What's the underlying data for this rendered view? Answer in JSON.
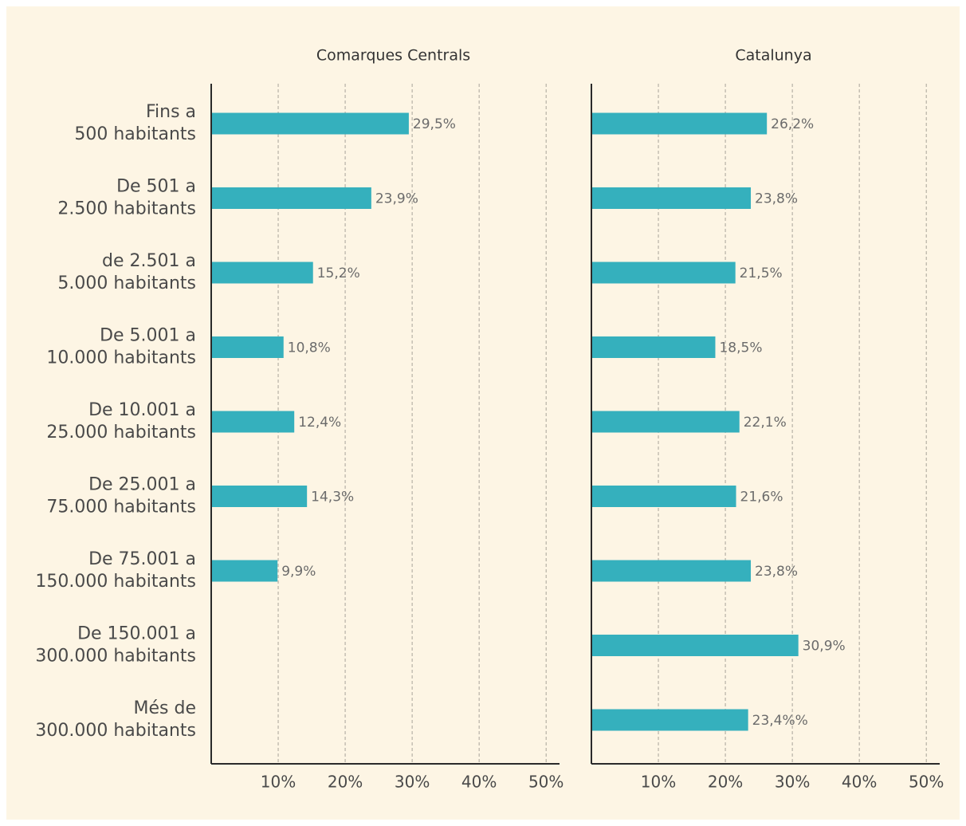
{
  "chart_data": [
    {
      "type": "bar",
      "orientation": "horizontal",
      "title": "Comarques Centrals",
      "categories": [
        "Fins a\n500 habitants",
        "De 501 a\n2.500 habitants",
        "de 2.501 a\n5.000 habitants",
        "De 5.001 a\n10.000 habitants",
        "De 10.001 a\n25.000 habitants",
        "De 25.001 a\n75.000 habitants",
        "De 75.001 a\n150.000 habitants",
        "De 150.001 a\n300.000 habitants",
        "Més de\n300.000 habitants"
      ],
      "values": [
        29.5,
        23.9,
        15.2,
        10.8,
        12.4,
        14.3,
        9.9,
        null,
        null
      ],
      "value_labels": [
        "29,5%",
        "23,9%",
        "15,2%",
        "10,8%",
        "12,4%",
        "14,3%",
        "9,9%",
        null,
        null
      ],
      "color": "#35b0bd",
      "xlim": [
        0,
        52
      ],
      "grid": true,
      "xticks": [
        {
          "value": 10,
          "label": "10%"
        },
        {
          "value": 20,
          "label": "20%"
        },
        {
          "value": 30,
          "label": "30%"
        },
        {
          "value": 40,
          "label": "40%"
        },
        {
          "value": 50,
          "label": "50%"
        }
      ]
    },
    {
      "type": "bar",
      "orientation": "horizontal",
      "title": "Catalunya",
      "values": [
        26.2,
        23.8,
        21.5,
        18.5,
        22.1,
        21.6,
        23.8,
        30.9,
        23.4
      ],
      "value_labels": [
        "26,2%",
        "23,8%",
        "21,5%",
        "18,5%",
        "22,1%",
        "21,6%",
        "23,8%",
        "30,9%",
        "23,4%%"
      ],
      "color": "#35b0bd",
      "xlim": [
        0,
        52
      ],
      "grid": true,
      "xticks": [
        {
          "value": 10,
          "label": "10%"
        },
        {
          "value": 20,
          "label": "20%"
        },
        {
          "value": 30,
          "label": "30%"
        },
        {
          "value": 40,
          "label": "40%"
        },
        {
          "value": 50,
          "label": "50%"
        }
      ]
    }
  ]
}
